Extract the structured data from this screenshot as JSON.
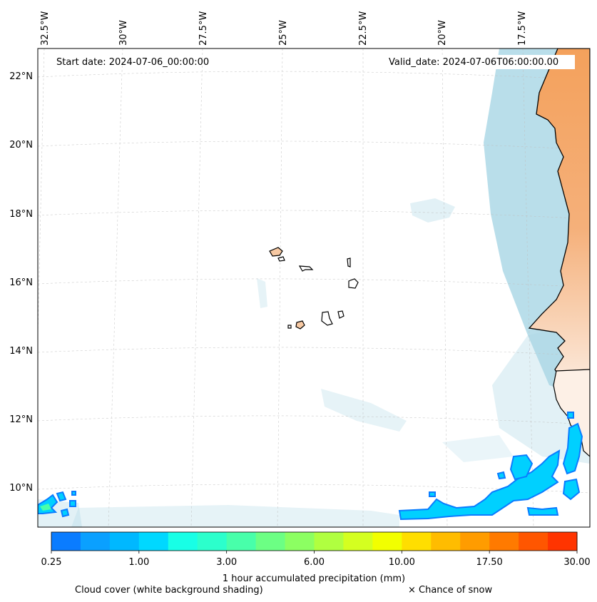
{
  "header": {
    "start_date": "Start date: 2024-07-06_00:00:00",
    "valid_date": "Valid_date: 2024-07-06T06:00:00.00"
  },
  "axes": {
    "lon_labels": [
      "32.5°W",
      "30°W",
      "27.5°W",
      "25°W",
      "22.5°W",
      "20°W",
      "17.5°W"
    ],
    "lat_labels": [
      "22°N",
      "20°N",
      "18°N",
      "16°N",
      "14°N",
      "12°N",
      "10°N"
    ]
  },
  "colorbar": {
    "colors": [
      "#0a7cff",
      "#0aa0ff",
      "#00b8ff",
      "#00d8ff",
      "#18ffe6",
      "#2cffcc",
      "#48ffaa",
      "#6cff84",
      "#8cff62",
      "#b0ff40",
      "#d4ff20",
      "#f2ff00",
      "#ffde00",
      "#ffbc00",
      "#ff9c00",
      "#ff7a00",
      "#ff5600",
      "#ff3400"
    ],
    "tick_labels": [
      "0.25",
      "1.00",
      "3.00",
      "6.00",
      "10.00",
      "17.50",
      "30.00"
    ],
    "label": "1 hour accumulated precipitation (mm)"
  },
  "legend": {
    "cloud_cover": "Cloud cover (white background shading)",
    "snow": "× Chance of snow"
  },
  "colors": {
    "land": "#f5a05a",
    "cloud": "#add8e6",
    "precip_light": "#00b8ff",
    "precip_edge": "#0a7cff"
  }
}
